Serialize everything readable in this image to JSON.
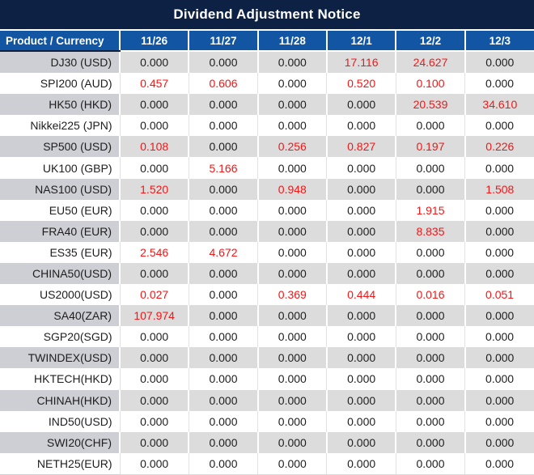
{
  "colors": {
    "title_bg": "#0c2143",
    "header_bg": "#1155a3",
    "row_alt_bg": "#dcdcdc",
    "product_alt_bg": "#cdcfd4",
    "negative_red": "#f51616",
    "text": "#1e1e1e"
  },
  "chart_data": {
    "type": "table",
    "title": "Dividend Adjustment Notice",
    "columns": [
      "Product / Currency",
      "11/26",
      "11/27",
      "11/28",
      "12/1",
      "12/2",
      "12/3"
    ],
    "rows": [
      {
        "product": "DJ30 (USD)",
        "values": [
          "0.000",
          "0.000",
          "0.000",
          "17.116",
          "24.627",
          "0.000"
        ],
        "red": [
          false,
          false,
          false,
          true,
          true,
          false
        ]
      },
      {
        "product": "SPI200 (AUD)",
        "values": [
          "0.457",
          "0.606",
          "0.000",
          "0.520",
          "0.100",
          "0.000"
        ],
        "red": [
          true,
          true,
          false,
          true,
          true,
          false
        ]
      },
      {
        "product": "HK50 (HKD)",
        "values": [
          "0.000",
          "0.000",
          "0.000",
          "0.000",
          "20.539",
          "34.610"
        ],
        "red": [
          false,
          false,
          false,
          false,
          true,
          true
        ]
      },
      {
        "product": "Nikkei225 (JPN)",
        "values": [
          "0.000",
          "0.000",
          "0.000",
          "0.000",
          "0.000",
          "0.000"
        ],
        "red": [
          false,
          false,
          false,
          false,
          false,
          false
        ]
      },
      {
        "product": "SP500 (USD)",
        "values": [
          "0.108",
          "0.000",
          "0.256",
          "0.827",
          "0.197",
          "0.226"
        ],
        "red": [
          true,
          false,
          true,
          true,
          true,
          true
        ]
      },
      {
        "product": "UK100 (GBP)",
        "values": [
          "0.000",
          "5.166",
          "0.000",
          "0.000",
          "0.000",
          "0.000"
        ],
        "red": [
          false,
          true,
          false,
          false,
          false,
          false
        ]
      },
      {
        "product": "NAS100 (USD)",
        "values": [
          "1.520",
          "0.000",
          "0.948",
          "0.000",
          "0.000",
          "1.508"
        ],
        "red": [
          true,
          false,
          true,
          false,
          false,
          true
        ]
      },
      {
        "product": "EU50 (EUR)",
        "values": [
          "0.000",
          "0.000",
          "0.000",
          "0.000",
          "1.915",
          "0.000"
        ],
        "red": [
          false,
          false,
          false,
          false,
          true,
          false
        ]
      },
      {
        "product": "FRA40 (EUR)",
        "values": [
          "0.000",
          "0.000",
          "0.000",
          "0.000",
          "8.835",
          "0.000"
        ],
        "red": [
          false,
          false,
          false,
          false,
          true,
          false
        ]
      },
      {
        "product": "ES35 (EUR)",
        "values": [
          "2.546",
          "4.672",
          "0.000",
          "0.000",
          "0.000",
          "0.000"
        ],
        "red": [
          true,
          true,
          false,
          false,
          false,
          false
        ]
      },
      {
        "product": "CHINA50(USD)",
        "values": [
          "0.000",
          "0.000",
          "0.000",
          "0.000",
          "0.000",
          "0.000"
        ],
        "red": [
          false,
          false,
          false,
          false,
          false,
          false
        ]
      },
      {
        "product": "US2000(USD)",
        "values": [
          "0.027",
          "0.000",
          "0.369",
          "0.444",
          "0.016",
          "0.051"
        ],
        "red": [
          true,
          false,
          true,
          true,
          true,
          true
        ]
      },
      {
        "product": "SA40(ZAR)",
        "values": [
          "107.974",
          "0.000",
          "0.000",
          "0.000",
          "0.000",
          "0.000"
        ],
        "red": [
          true,
          false,
          false,
          false,
          false,
          false
        ]
      },
      {
        "product": "SGP20(SGD)",
        "values": [
          "0.000",
          "0.000",
          "0.000",
          "0.000",
          "0.000",
          "0.000"
        ],
        "red": [
          false,
          false,
          false,
          false,
          false,
          false
        ]
      },
      {
        "product": "TWINDEX(USD)",
        "values": [
          "0.000",
          "0.000",
          "0.000",
          "0.000",
          "0.000",
          "0.000"
        ],
        "red": [
          false,
          false,
          false,
          false,
          false,
          false
        ]
      },
      {
        "product": "HKTECH(HKD)",
        "values": [
          "0.000",
          "0.000",
          "0.000",
          "0.000",
          "0.000",
          "0.000"
        ],
        "red": [
          false,
          false,
          false,
          false,
          false,
          false
        ]
      },
      {
        "product": "CHINAH(HKD)",
        "values": [
          "0.000",
          "0.000",
          "0.000",
          "0.000",
          "0.000",
          "0.000"
        ],
        "red": [
          false,
          false,
          false,
          false,
          false,
          false
        ]
      },
      {
        "product": "IND50(USD)",
        "values": [
          "0.000",
          "0.000",
          "0.000",
          "0.000",
          "0.000",
          "0.000"
        ],
        "red": [
          false,
          false,
          false,
          false,
          false,
          false
        ]
      },
      {
        "product": "SWI20(CHF)",
        "values": [
          "0.000",
          "0.000",
          "0.000",
          "0.000",
          "0.000",
          "0.000"
        ],
        "red": [
          false,
          false,
          false,
          false,
          false,
          false
        ]
      },
      {
        "product": "NETH25(EUR)",
        "values": [
          "0.000",
          "0.000",
          "0.000",
          "0.000",
          "0.000",
          "0.000"
        ],
        "red": [
          false,
          false,
          false,
          false,
          false,
          false
        ]
      }
    ]
  }
}
